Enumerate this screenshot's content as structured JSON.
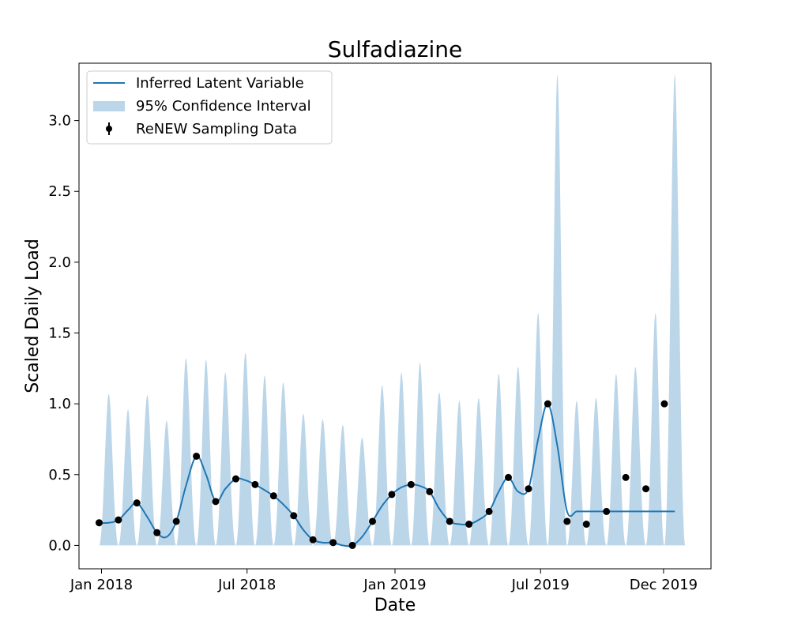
{
  "chart_data": {
    "type": "line",
    "title": "Sulfadiazine",
    "xlabel": "Date",
    "ylabel": "Scaled Daily Load",
    "x_ticks": [
      "2018-01-01",
      "2018-07-01",
      "2019-01-01",
      "2019-07-01",
      "2019-12-01"
    ],
    "x_tick_labels": [
      "Jan 2018",
      "Jul 2018",
      "Jan 2019",
      "Jul 2019",
      "Dec 2019"
    ],
    "xlim": [
      "2017-12-04",
      "2020-01-29"
    ],
    "ylim": [
      -0.165,
      3.405
    ],
    "y_ticks": [
      0.0,
      0.5,
      1.0,
      1.5,
      2.0,
      2.5,
      3.0
    ],
    "y_tick_labels": [
      "0.0",
      "0.5",
      "1.0",
      "1.5",
      "2.0",
      "2.5",
      "3.0"
    ],
    "grid": false,
    "legend": {
      "position": "top-left",
      "entries": [
        {
          "label": "Inferred Latent Variable",
          "kind": "line"
        },
        {
          "label": "95% Confidence Interval",
          "kind": "patch"
        },
        {
          "label": "ReNEW Sampling Data",
          "kind": "marker"
        }
      ]
    },
    "colors": {
      "line": "#1f77b4",
      "band": "#bcd6e9",
      "points": "#000000"
    },
    "series": [
      {
        "name": "ReNEW Sampling Data",
        "kind": "scatter",
        "x": [
          "2017-12-29",
          "2018-01-22",
          "2018-02-14",
          "2018-03-11",
          "2018-04-04",
          "2018-04-29",
          "2018-05-23",
          "2018-06-17",
          "2018-07-11",
          "2018-08-03",
          "2018-08-28",
          "2018-09-21",
          "2018-10-16",
          "2018-11-09",
          "2018-12-04",
          "2018-12-28",
          "2019-01-21",
          "2019-02-13",
          "2019-03-10",
          "2019-04-03",
          "2019-04-28",
          "2019-05-22",
          "2019-06-16",
          "2019-07-10",
          "2019-08-03",
          "2019-08-27",
          "2019-09-21",
          "2019-10-15",
          "2019-11-09",
          "2019-12-02"
        ],
        "values": [
          0.16,
          0.18,
          0.3,
          0.09,
          0.17,
          0.63,
          0.31,
          0.47,
          0.43,
          0.35,
          0.21,
          0.04,
          0.02,
          0.0,
          0.17,
          0.36,
          0.43,
          0.38,
          0.17,
          0.15,
          0.24,
          0.48,
          0.4,
          1.0,
          0.17,
          0.15,
          0.24,
          0.48,
          0.4,
          1.0
        ]
      },
      {
        "name": "Inferred Latent Variable",
        "kind": "line",
        "x": [
          "2017-12-29",
          "2018-01-10",
          "2018-01-22",
          "2018-02-03",
          "2018-02-14",
          "2018-02-27",
          "2018-03-11",
          "2018-03-23",
          "2018-04-04",
          "2018-04-16",
          "2018-04-29",
          "2018-05-11",
          "2018-05-23",
          "2018-06-04",
          "2018-06-17",
          "2018-06-29",
          "2018-07-11",
          "2018-07-23",
          "2018-08-03",
          "2018-08-15",
          "2018-08-28",
          "2018-09-09",
          "2018-09-21",
          "2018-10-03",
          "2018-10-16",
          "2018-10-28",
          "2018-11-09",
          "2018-11-21",
          "2018-12-04",
          "2018-12-16",
          "2018-12-28",
          "2019-01-09",
          "2019-01-21",
          "2019-02-01",
          "2019-02-13",
          "2019-02-25",
          "2019-03-10",
          "2019-03-22",
          "2019-04-03",
          "2019-04-15",
          "2019-04-28",
          "2019-05-10",
          "2019-05-22",
          "2019-06-03",
          "2019-06-16",
          "2019-06-28",
          "2019-07-10",
          "2019-07-22",
          "2019-08-03",
          "2019-08-15",
          "2019-08-27",
          "2019-09-08",
          "2019-09-21",
          "2019-10-03",
          "2019-10-15",
          "2019-10-27",
          "2019-11-09",
          "2019-11-21",
          "2019-12-02",
          "2019-12-15"
        ],
        "values": [
          0.16,
          0.16,
          0.18,
          0.25,
          0.3,
          0.2,
          0.09,
          0.06,
          0.17,
          0.42,
          0.63,
          0.5,
          0.31,
          0.4,
          0.47,
          0.46,
          0.43,
          0.39,
          0.35,
          0.29,
          0.21,
          0.11,
          0.04,
          0.02,
          0.02,
          0.0,
          0.0,
          0.06,
          0.17,
          0.28,
          0.36,
          0.41,
          0.43,
          0.42,
          0.38,
          0.26,
          0.17,
          0.15,
          0.15,
          0.18,
          0.24,
          0.38,
          0.48,
          0.38,
          0.4,
          0.75,
          1.0,
          0.7,
          0.24,
          0.24,
          0.24,
          0.24,
          0.24,
          0.24,
          0.24,
          0.24,
          0.24,
          0.24,
          0.24,
          0.24
        ]
      },
      {
        "name": "95% Confidence Interval",
        "kind": "band",
        "peak_x": [
          "2018-01-10",
          "2018-02-03",
          "2018-02-27",
          "2018-03-23",
          "2018-04-16",
          "2018-05-11",
          "2018-06-04",
          "2018-06-29",
          "2018-07-23",
          "2018-08-15",
          "2018-09-09",
          "2018-10-03",
          "2018-10-28",
          "2018-11-21",
          "2018-12-16",
          "2019-01-09",
          "2019-02-01",
          "2019-02-25",
          "2019-03-22",
          "2019-04-15",
          "2019-05-10",
          "2019-06-03",
          "2019-06-28",
          "2019-07-22",
          "2019-08-15",
          "2019-09-08",
          "2019-10-03",
          "2019-10-27",
          "2019-11-21",
          "2019-12-15"
        ],
        "peak_upper": [
          1.07,
          0.96,
          1.06,
          0.88,
          1.32,
          1.31,
          1.22,
          1.36,
          1.2,
          1.15,
          0.93,
          0.89,
          0.85,
          0.76,
          1.13,
          1.22,
          1.29,
          1.08,
          1.02,
          1.04,
          1.21,
          1.26,
          1.64,
          3.32,
          1.02,
          1.04,
          1.21,
          1.26,
          1.64,
          3.32
        ],
        "lower": 0.0
      }
    ]
  }
}
